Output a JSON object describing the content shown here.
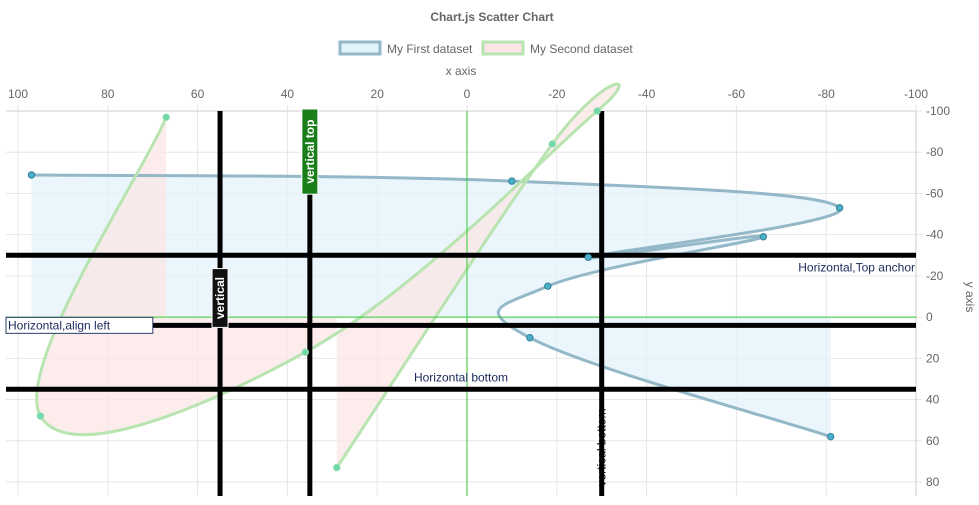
{
  "chart_data": {
    "type": "scatter",
    "title": "Chart.js Scatter Chart",
    "xlabel": "x axis",
    "ylabel": "y axis",
    "xlim": [
      100,
      -100
    ],
    "ylim": [
      -100,
      80
    ],
    "x_reversed": true,
    "y_reversed": true,
    "grid": true,
    "legend_position": "top",
    "x_ticks": [
      100,
      80,
      60,
      40,
      20,
      0,
      -20,
      -40,
      -60,
      -80,
      -100
    ],
    "y_ticks": [
      -100,
      -80,
      -60,
      -40,
      -20,
      0,
      20,
      40,
      60,
      80
    ],
    "series": [
      {
        "name": "My First dataset",
        "border_color": "#94b8c8",
        "fill_color": "#e3f3fb",
        "point_color": "#4bb0c8",
        "points": [
          {
            "x": 97,
            "y": -69
          },
          {
            "x": -10,
            "y": -66
          },
          {
            "x": -83,
            "y": -53
          },
          {
            "x": -27,
            "y": -29
          },
          {
            "x": -66,
            "y": -39
          },
          {
            "x": -18,
            "y": -15
          },
          {
            "x": -14,
            "y": 10
          },
          {
            "x": -81,
            "y": 58
          }
        ]
      },
      {
        "name": "My Second dataset",
        "border_color": "#b8e4b0",
        "fill_color": "#fbe6e6",
        "point_color": "#6fd9a8",
        "points": [
          {
            "x": 67,
            "y": -97
          },
          {
            "x": 95,
            "y": 48
          },
          {
            "x": 36,
            "y": 17
          },
          {
            "x": -29,
            "y": -100
          },
          {
            "x": -19,
            "y": -84
          },
          {
            "x": 29,
            "y": 73
          }
        ]
      }
    ],
    "annotations": {
      "zero_lines": [
        {
          "axis": "x",
          "value": 0,
          "color": "#33cc33"
        },
        {
          "axis": "y",
          "value": 0,
          "color": "#33cc33"
        }
      ],
      "vertical": [
        {
          "value": 55,
          "label": "vertical",
          "label_position": "center",
          "label_style": "dark"
        },
        {
          "value": 35,
          "label": "vertical top",
          "label_position": "top",
          "label_style": "green"
        },
        {
          "value": -30,
          "label": "vertical bottom",
          "label_position": "bottom",
          "label_style": "plain"
        }
      ],
      "horizontal": [
        {
          "value": -30,
          "label": "Horizontal,Top anchor",
          "label_position": "right",
          "label_style": "plain"
        },
        {
          "value": 4,
          "label": "Horizontal,align left",
          "label_position": "left",
          "label_style": "boxed"
        },
        {
          "value": 35,
          "label": "Horizontal bottom",
          "label_position": "center",
          "label_style": "plain"
        }
      ]
    }
  }
}
